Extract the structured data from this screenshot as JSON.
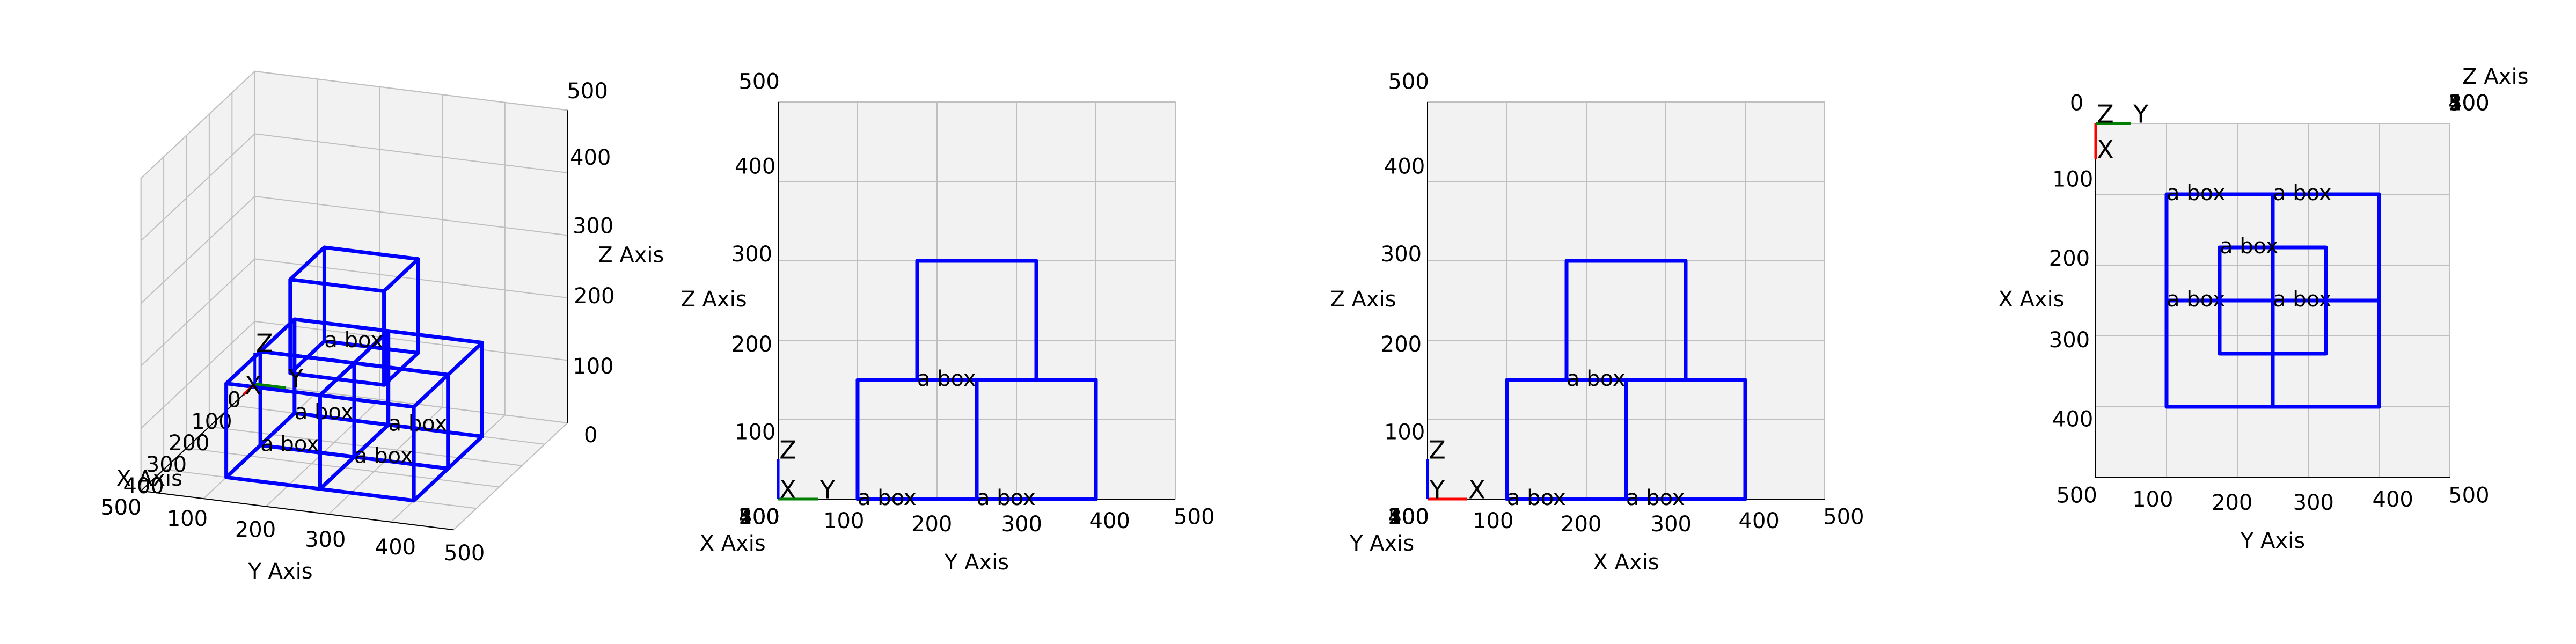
{
  "chart_data": {
    "type": "box3d",
    "xlabel": "X Axis",
    "ylabel": "Y Axis",
    "zlabel": "Z Axis",
    "xlim": [
      0,
      500
    ],
    "ylim": [
      0,
      500
    ],
    "zlim": [
      0,
      500
    ],
    "xticks": [
      0,
      100,
      200,
      300,
      400,
      500
    ],
    "yticks": [
      0,
      100,
      200,
      300,
      400,
      500
    ],
    "zticks": [
      0,
      100,
      200,
      300,
      400,
      500
    ],
    "grid": true,
    "box_color": "#0000ff",
    "label_color": "#ff0000",
    "boxes": [
      {
        "label": "a box",
        "x": [
          100,
          250
        ],
        "y": [
          100,
          250
        ],
        "z": [
          0,
          150
        ]
      },
      {
        "label": "a box",
        "x": [
          100,
          250
        ],
        "y": [
          250,
          400
        ],
        "z": [
          0,
          150
        ]
      },
      {
        "label": "a box",
        "x": [
          250,
          400
        ],
        "y": [
          100,
          250
        ],
        "z": [
          0,
          150
        ]
      },
      {
        "label": "a box",
        "x": [
          250,
          400
        ],
        "y": [
          250,
          400
        ],
        "z": [
          0,
          150
        ]
      },
      {
        "label": "a box",
        "x": [
          175,
          325
        ],
        "y": [
          175,
          325
        ],
        "z": [
          150,
          300
        ]
      }
    ],
    "triad": {
      "labels": [
        "X",
        "Y",
        "Z"
      ],
      "colors": [
        "#ff0000",
        "#008000",
        "#0000ff"
      ],
      "length": 50
    },
    "views": [
      {
        "elev": 20,
        "azim": 20
      },
      {
        "elev": 0,
        "azim": 0
      },
      {
        "elev": 0,
        "azim": -90
      },
      {
        "elev": 90,
        "azim": 0
      }
    ]
  }
}
